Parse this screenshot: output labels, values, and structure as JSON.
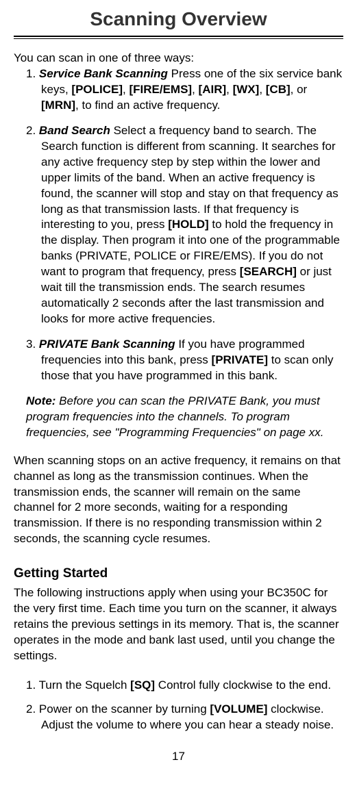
{
  "page": {
    "title": "Scanning Overview",
    "intro": "You can scan in one of three ways:",
    "items": [
      {
        "num": "1.",
        "lead": "Service Bank Scanning",
        "t1": " Press one of the six service bank keys, ",
        "k1": "[POLICE]",
        "sep1": ", ",
        "k2": "[FIRE/EMS]",
        "sep2": ", ",
        "k3": "[AIR]",
        "sep3": ", ",
        "k4": "[WX]",
        "sep4": ", ",
        "k5": "[CB]",
        "sep5": ", or ",
        "k6": "[MRN]",
        "tail": ", to find an active frequency."
      },
      {
        "num": "2.",
        "lead": "Band Search",
        "t1": " Select a frequency band to search. The Search function is different from scanning. It searches for any active frequency step by step within the lower and upper limits of the band. When an active frequency is found, the scanner will stop and stay on that frequency as long as that transmission lasts. If that frequency is interesting to you, press ",
        "k1": "[HOLD]",
        "t2": " to hold the frequency in the display. Then program it into one of the programmable banks (PRIVATE, POLICE or FIRE/EMS). If you do not want to program that frequency, press ",
        "k2": "[SEARCH]",
        "tail": " or just wait till the transmission ends. The search resumes automatically 2 seconds after the last transmission and looks for more active frequencies."
      },
      {
        "num": "3.",
        "lead": "PRIVATE Bank Scanning",
        "t1": " If you have programmed frequencies into this bank, press ",
        "k1": "[PRIVATE]",
        "tail": " to scan only those that you have programmed in this bank."
      }
    ],
    "note": {
      "label": "Note:",
      "text": " Before you can scan the PRIVATE Bank, you must program frequencies into the channels. To program frequencies, see \"Programming Frequencies\" on page xx."
    },
    "body": "When scanning stops on an active frequency, it remains on that channel as long as the transmission continues. When the transmission ends, the scanner will remain on the same channel for 2 more seconds, waiting for a responding transmission. If there is no responding transmission within 2 seconds, the scanning cycle resumes.",
    "getting_started": {
      "heading": "Getting Started",
      "intro": "The following instructions apply when using your BC350C for the very first time. Each time you turn on the scanner, it always retains the previous settings in its memory. That is, the scanner operates in the mode and bank last used, until you change the settings.",
      "steps": [
        {
          "num": "1.",
          "t1": "Turn the Squelch ",
          "k1": "[SQ]",
          "tail": " Control fully clockwise to the end."
        },
        {
          "num": "2.",
          "t1": "Power on the scanner by turning ",
          "k1": "[VOLUME]",
          "tail": " clockwise. Adjust the volume to where you can hear a steady noise."
        }
      ]
    },
    "page_number": "17"
  }
}
